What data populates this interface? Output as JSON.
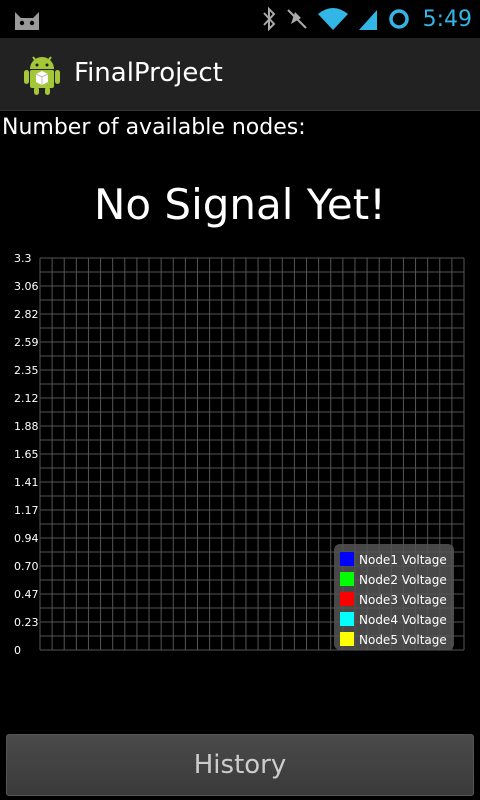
{
  "status_bar": {
    "time": "5:49",
    "icons": [
      "cat-notification-icon",
      "bluetooth-icon",
      "mute-icon",
      "wifi-icon",
      "signal-icon",
      "sync-icon"
    ],
    "accent": "#33b5e5"
  },
  "action_bar": {
    "title": "FinalProject",
    "icon": "android-app-icon"
  },
  "main": {
    "nodes_label": "Number of available nodes:",
    "signal_text": "No Signal Yet!",
    "history_button": "History"
  },
  "chart_data": {
    "type": "line",
    "title": "",
    "xlabel": "",
    "ylabel": "",
    "ylim": [
      0,
      3.3
    ],
    "yticks": [
      "3.3",
      "3.06",
      "2.82",
      "2.59",
      "2.35",
      "2.12",
      "1.88",
      "1.65",
      "1.41",
      "1.17",
      "0.94",
      "0.70",
      "0.47",
      "0.23",
      "0"
    ],
    "grid": true,
    "legend_position": "bottom-right",
    "series": [
      {
        "name": "Node1 Voltage",
        "color": "#0000ff",
        "values": []
      },
      {
        "name": "Node2 Voltage",
        "color": "#00ff00",
        "values": []
      },
      {
        "name": "Node3 Voltage",
        "color": "#ff0000",
        "values": []
      },
      {
        "name": "Node4 Voltage",
        "color": "#00ffff",
        "values": []
      },
      {
        "name": "Node5 Voltage",
        "color": "#ffff00",
        "values": []
      }
    ]
  }
}
